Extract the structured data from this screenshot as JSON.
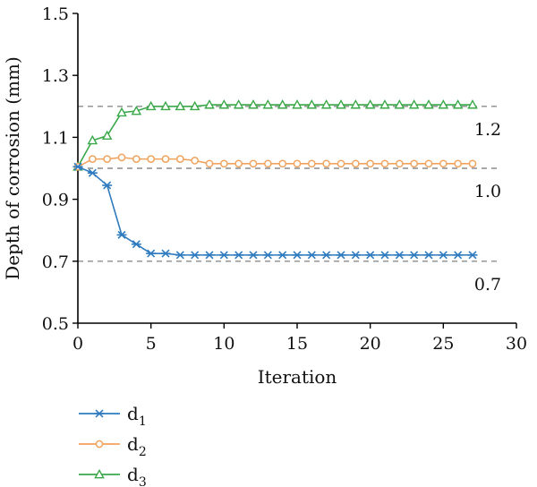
{
  "chart_data": {
    "type": "line",
    "xlabel": "Iteration",
    "ylabel": "Depth of corrosion (mm)",
    "xlim": [
      0,
      30
    ],
    "ylim": [
      0.5,
      1.5
    ],
    "xticks": [
      "0",
      "5",
      "10",
      "15",
      "20",
      "25",
      "30"
    ],
    "yticks": [
      "0.5",
      "0.7",
      "0.9",
      "1.1",
      "1.3",
      "1.5"
    ],
    "x": [
      0,
      1,
      2,
      3,
      4,
      5,
      6,
      7,
      8,
      9,
      10,
      11,
      12,
      13,
      14,
      15,
      16,
      17,
      18,
      19,
      20,
      21,
      22,
      23,
      24,
      25,
      26,
      27
    ],
    "series": [
      {
        "name": "d",
        "sub": "1",
        "color": "#2f7bbf",
        "marker": "asterisk",
        "values": [
          1.005,
          0.985,
          0.945,
          0.785,
          0.755,
          0.725,
          0.725,
          0.72,
          0.72,
          0.72,
          0.72,
          0.72,
          0.72,
          0.72,
          0.72,
          0.72,
          0.72,
          0.72,
          0.72,
          0.72,
          0.72,
          0.72,
          0.72,
          0.72,
          0.72,
          0.72,
          0.72,
          0.72
        ]
      },
      {
        "name": "d",
        "sub": "2",
        "color": "#f0a35e",
        "marker": "circle",
        "values": [
          1.005,
          1.03,
          1.03,
          1.035,
          1.03,
          1.03,
          1.03,
          1.03,
          1.025,
          1.015,
          1.015,
          1.015,
          1.015,
          1.015,
          1.015,
          1.015,
          1.015,
          1.015,
          1.015,
          1.015,
          1.015,
          1.015,
          1.015,
          1.015,
          1.015,
          1.015,
          1.015,
          1.015
        ]
      },
      {
        "name": "d",
        "sub": "3",
        "color": "#3aa849",
        "marker": "triangle",
        "values": [
          1.005,
          1.09,
          1.105,
          1.18,
          1.185,
          1.2,
          1.2,
          1.2,
          1.2,
          1.205,
          1.205,
          1.205,
          1.205,
          1.205,
          1.205,
          1.205,
          1.205,
          1.205,
          1.205,
          1.205,
          1.205,
          1.205,
          1.205,
          1.205,
          1.205,
          1.205,
          1.205,
          1.205
        ]
      }
    ],
    "reference_lines": [
      {
        "y": 1.2,
        "label": "1.2"
      },
      {
        "y": 1.0,
        "label": "1.0"
      },
      {
        "y": 0.7,
        "label": "0.7"
      }
    ],
    "grid": false,
    "legend_position": "bottom-left"
  }
}
